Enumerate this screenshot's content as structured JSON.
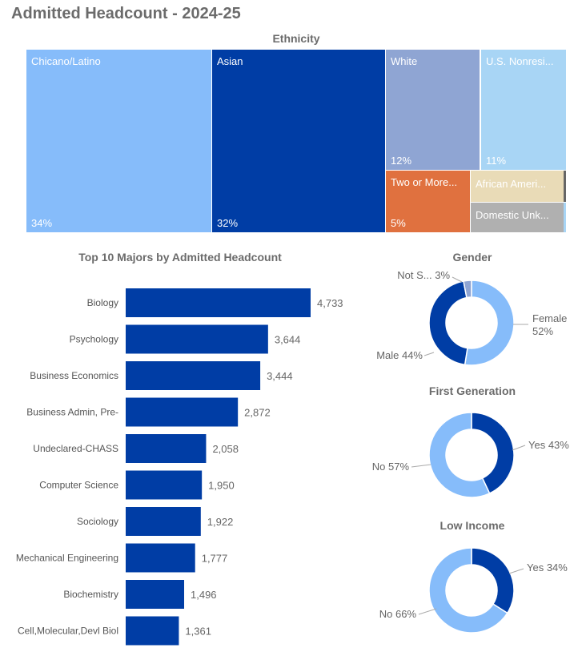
{
  "page": {
    "title": "Admitted Headcount - 2024-25"
  },
  "chart_data": [
    {
      "type": "treemap",
      "title": "Ethnicity",
      "items": [
        {
          "label": "Chicano/Latino",
          "display": "Chicano/Latino",
          "pct_label": "34%",
          "value": 34,
          "color": "#86BCFA"
        },
        {
          "label": "Asian",
          "display": "Asian",
          "pct_label": "32%",
          "value": 32,
          "color": "#003DA5"
        },
        {
          "label": "White",
          "display": "White",
          "pct_label": "12%",
          "value": 12,
          "color": "#8FA5D3"
        },
        {
          "label": "U.S. Nonresident",
          "display": "U.S. Nonresi...",
          "pct_label": "11%",
          "value": 11,
          "color": "#A8D5F5"
        },
        {
          "label": "Two or More Races",
          "display": "Two or More...",
          "pct_label": "5%",
          "value": 5,
          "color": "#E0713F"
        },
        {
          "label": "African American",
          "display": "African Ameri...",
          "pct_label": "",
          "value": 3,
          "color": "#E9DBB7"
        },
        {
          "label": "Domestic Unknown",
          "display": "Domestic Unk...",
          "pct_label": "",
          "value": 2,
          "color": "#B0B0B0"
        }
      ]
    },
    {
      "type": "bar",
      "orientation": "horizontal",
      "title": "Top 10 Majors by Admitted Headcount",
      "categories": [
        "Biology",
        "Psychology",
        "Business Economics",
        "Business Admin, Pre-",
        "Undeclared-CHASS",
        "Computer Science",
        "Sociology",
        "Mechanical Engineering",
        "Biochemistry",
        "Cell,Molecular,Devl Biol"
      ],
      "values": [
        4733,
        3644,
        3444,
        2872,
        2058,
        1950,
        1922,
        1777,
        1496,
        1361
      ],
      "value_labels": [
        "4,733",
        "3,644",
        "3,444",
        "2,872",
        "2,058",
        "1,950",
        "1,922",
        "1,777",
        "1,496",
        "1,361"
      ],
      "color": "#003DA5"
    },
    {
      "type": "pie",
      "title": "Gender",
      "slices": [
        {
          "label": "Female",
          "pct": 52,
          "text": "Female\n52%",
          "color": "#86BCFA"
        },
        {
          "label": "Male",
          "pct": 44,
          "text": "Male 44%",
          "color": "#003DA5"
        },
        {
          "label": "Not Specified",
          "pct": 3,
          "text": "Not S... 3%",
          "color": "#8FA5D3"
        }
      ]
    },
    {
      "type": "pie",
      "title": "First Generation",
      "slices": [
        {
          "label": "Yes",
          "pct": 43,
          "text": "Yes 43%",
          "color": "#003DA5"
        },
        {
          "label": "No",
          "pct": 57,
          "text": "No 57%",
          "color": "#86BCFA"
        }
      ]
    },
    {
      "type": "pie",
      "title": "Low Income",
      "slices": [
        {
          "label": "Yes",
          "pct": 34,
          "text": "Yes 34%",
          "color": "#003DA5"
        },
        {
          "label": "No",
          "pct": 66,
          "text": "No 66%",
          "color": "#86BCFA"
        }
      ]
    }
  ]
}
